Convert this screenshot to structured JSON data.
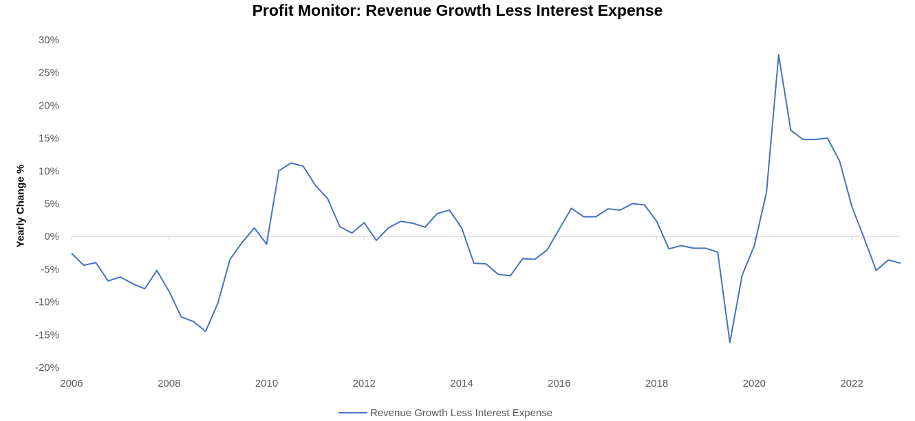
{
  "chart_data": {
    "type": "line",
    "title": "Profit Monitor: Revenue Growth Less Interest Expense",
    "xlabel": "",
    "ylabel": "Yearly Change %",
    "xlim": [
      2006,
      2023
    ],
    "ylim": [
      -20,
      30
    ],
    "x_ticks": [
      "2006",
      "2008",
      "2010",
      "2012",
      "2014",
      "2016",
      "2018",
      "2020",
      "2022"
    ],
    "y_ticks": [
      "30%",
      "25%",
      "20%",
      "15%",
      "10%",
      "5%",
      "0%",
      "-5%",
      "-10%",
      "-15%",
      "-20%"
    ],
    "grid": false,
    "legend_position": "bottom",
    "line_color": "#4472c4",
    "series": [
      {
        "name": "Revenue Growth Less Interest Expense",
        "x": [
          2006.0,
          2006.25,
          2006.5,
          2006.75,
          2007.0,
          2007.25,
          2007.5,
          2007.75,
          2008.0,
          2008.25,
          2008.5,
          2008.75,
          2009.0,
          2009.25,
          2009.5,
          2009.75,
          2010.0,
          2010.25,
          2010.5,
          2010.75,
          2011.0,
          2011.25,
          2011.5,
          2011.75,
          2012.0,
          2012.25,
          2012.5,
          2012.75,
          2013.0,
          2013.25,
          2013.5,
          2013.75,
          2014.0,
          2014.25,
          2014.5,
          2014.75,
          2015.0,
          2015.25,
          2015.5,
          2015.75,
          2016.0,
          2016.25,
          2016.5,
          2016.75,
          2017.0,
          2017.25,
          2017.5,
          2017.75,
          2018.0,
          2018.25,
          2018.5,
          2018.75,
          2019.0,
          2019.25,
          2019.5,
          2019.75,
          2020.0,
          2020.25,
          2020.5,
          2020.75,
          2021.0,
          2021.25,
          2021.5,
          2021.75,
          2022.0,
          2022.25,
          2022.5,
          2022.75,
          2023.0
        ],
        "values": [
          -2.6,
          -4.4,
          -4.0,
          -6.8,
          -6.2,
          -7.2,
          -8.0,
          -5.2,
          -8.4,
          -12.3,
          -13.0,
          -14.5,
          -10.2,
          -3.5,
          -0.9,
          1.3,
          -1.2,
          10.0,
          11.2,
          10.7,
          7.8,
          5.8,
          1.5,
          0.5,
          2.1,
          -0.6,
          1.3,
          2.3,
          2.0,
          1.4,
          3.5,
          4.0,
          1.3,
          -4.1,
          -4.2,
          -5.8,
          -6.0,
          -3.4,
          -3.5,
          -2.1,
          1.1,
          4.3,
          3.0,
          3.0,
          4.2,
          4.0,
          5.0,
          4.8,
          2.3,
          -1.9,
          -1.4,
          -1.8,
          -1.8,
          -2.4,
          -16.2,
          -6.0,
          -1.4,
          6.7,
          27.7,
          16.2,
          14.8,
          14.8,
          15.0,
          11.5,
          4.6,
          -0.2,
          -5.2,
          -3.6,
          -4.1
        ]
      }
    ]
  }
}
